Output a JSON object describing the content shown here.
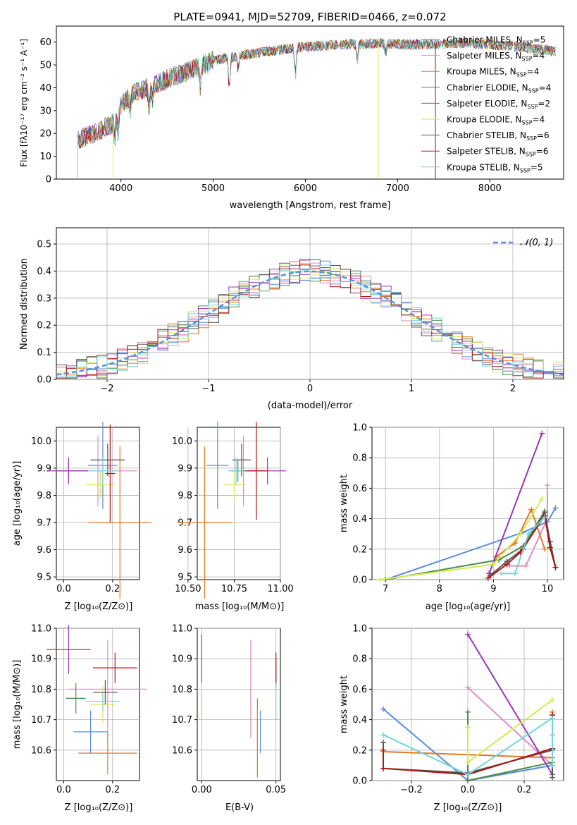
{
  "colors": {
    "chabrier_miles": "#5b8bdc",
    "salpeter_miles": "#e38bc4",
    "kroupa_miles": "#e07a22",
    "chabrier_elodie": "#4a8a4a",
    "salpeter_elodie": "#9a35b8",
    "kroupa_elodie": "#d6ea52",
    "chabrier_stelib": "#555555",
    "salpeter_stelib": "#b01515",
    "kroupa_stelib": "#72d4de",
    "normal": "#5b8fd8",
    "grid": "#b0b0b0"
  },
  "chart_data": [
    {
      "id": "spectrum",
      "type": "line",
      "title": "PLATE=0941, MJD=52709, FIBERID=0466, z=0.072",
      "xlabel": "wavelength [Angstrom, rest frame]",
      "ylabel": "Flux [fλ10⁻¹⁷ erg cm⁻² s⁻¹ A⁻¹]",
      "xlim": [
        3300,
        8800
      ],
      "ylim": [
        0,
        67
      ],
      "xticks": [
        "4000",
        "5000",
        "6000",
        "7000",
        "8000"
      ],
      "yticks": [
        "0",
        "10",
        "20",
        "30",
        "40",
        "50",
        "60"
      ],
      "grid": false,
      "legend_position": "top-right",
      "continuum_x": [
        3530,
        3700,
        3900,
        4000,
        4100,
        4400,
        4700,
        5000,
        5300,
        5600,
        5900,
        6200,
        6500,
        6800,
        7100,
        7400,
        7700,
        8000,
        8300,
        8700
      ],
      "continuum_y": [
        17,
        20,
        24,
        32,
        37,
        42,
        47,
        52,
        54,
        56,
        57.5,
        58.5,
        59,
        59.5,
        59,
        59,
        59.5,
        59,
        58,
        56
      ],
      "dips": [
        [
          3933,
          10
        ],
        [
          3968,
          9
        ],
        [
          4102,
          7
        ],
        [
          4305,
          10
        ],
        [
          4340,
          6
        ],
        [
          4861,
          9
        ],
        [
          5175,
          14
        ],
        [
          5270,
          5
        ],
        [
          5892,
          12
        ],
        [
          6563,
          7
        ],
        [
          6870,
          4
        ]
      ],
      "series": [
        {
          "name": "Chabrier MILES, N",
          "sub": "SSP",
          "tail": "=5",
          "color": "chabrier_miles"
        },
        {
          "name": "Salpeter MILES, N",
          "sub": "SSP",
          "tail": "=4",
          "color": "salpeter_miles"
        },
        {
          "name": "Kroupa MILES, N",
          "sub": "SSP",
          "tail": "=4",
          "color": "kroupa_miles"
        },
        {
          "name": "Chabrier ELODIE, N",
          "sub": "SSP",
          "tail": "=4",
          "color": "chabrier_elodie"
        },
        {
          "name": "Salpeter ELODIE, N",
          "sub": "SSP",
          "tail": "=2",
          "color": "salpeter_elodie"
        },
        {
          "name": "Kroupa ELODIE, N",
          "sub": "SSP",
          "tail": "=4",
          "color": "kroupa_elodie"
        },
        {
          "name": "Chabrier STELIB, N",
          "sub": "SSP",
          "tail": "=6",
          "color": "chabrier_stelib"
        },
        {
          "name": "Salpeter STELIB, N",
          "sub": "SSP",
          "tail": "=6",
          "color": "salpeter_stelib"
        },
        {
          "name": "Kroupa STELIB, N",
          "sub": "SSP",
          "tail": "=5",
          "color": "kroupa_stelib"
        }
      ]
    },
    {
      "id": "residuals",
      "type": "histogram",
      "xlabel": "(data-model)/error",
      "ylabel": "Normed distribution",
      "xlim": [
        -2.5,
        2.5
      ],
      "ylim": [
        0,
        0.56
      ],
      "xticks": [
        "−2",
        "−1",
        "0",
        "1",
        "2"
      ],
      "yticks": [
        "0.0",
        "0.1",
        "0.2",
        "0.3",
        "0.4",
        "0.5"
      ],
      "grid": true,
      "legend": "𝒩(0, 1)",
      "legend_position": "top-right",
      "bin_width": 0.1
    },
    {
      "id": "z-vs-age",
      "type": "errorbar",
      "xlabel": "Z [log₁₀(Z/Z⊙)]",
      "ylabel": "age  [log₁₀(age/yr)]",
      "xlim": [
        -0.03,
        0.31
      ],
      "ylim": [
        9.49,
        10.05
      ],
      "xticks": [
        "0.0",
        "0.2"
      ],
      "yticks": [
        "9.5",
        "9.6",
        "9.7",
        "9.8",
        "9.9",
        "10.0"
      ],
      "points": [
        {
          "x": 0.16,
          "xerr": 0.06,
          "y": 9.91,
          "yerr": 0.16,
          "color": "chabrier_miles"
        },
        {
          "x": 0.14,
          "xerr": 0.16,
          "y": 9.89,
          "yerr": 0.13,
          "color": "salpeter_miles"
        },
        {
          "x": 0.23,
          "xerr": 0.13,
          "y": 9.7,
          "yerr": 0.28,
          "color": "kroupa_miles"
        },
        {
          "x": 0.02,
          "xerr": 0.06,
          "y": 9.89,
          "yerr": 0.04,
          "color": "chabrier_elodie"
        },
        {
          "x": 0.02,
          "xerr": 0.08,
          "y": 9.89,
          "yerr": 0.05,
          "color": "salpeter_elodie"
        },
        {
          "x": 0.15,
          "xerr": 0.06,
          "y": 9.84,
          "yerr": 0.05,
          "color": "kroupa_elodie"
        },
        {
          "x": 0.18,
          "xerr": 0.07,
          "y": 9.93,
          "yerr": 0.06,
          "color": "chabrier_stelib"
        },
        {
          "x": 0.19,
          "xerr": 0.02,
          "y": 9.88,
          "yerr": 0.18,
          "color": "salpeter_stelib"
        },
        {
          "x": 0.16,
          "xerr": 0.05,
          "y": 9.89,
          "yerr": 0.05,
          "color": "kroupa_stelib"
        }
      ]
    },
    {
      "id": "mass-vs-age",
      "type": "errorbar",
      "xlabel": "mass [log₁₀(M/M⊙)]",
      "ylabel": "",
      "xlim": [
        10.55,
        11.0
      ],
      "ylim": [
        9.49,
        10.05
      ],
      "xticks": [
        "10.50",
        "10.75",
        "11.00"
      ],
      "yticks": [
        "9.5",
        "9.6",
        "9.7",
        "9.8",
        "9.9",
        "10.0"
      ],
      "points": [
        {
          "x": 10.66,
          "xerr": 0.06,
          "y": 9.91,
          "yerr": 0.16,
          "color": "chabrier_miles"
        },
        {
          "x": 10.8,
          "xerr": 0.08,
          "y": 9.89,
          "yerr": 0.13,
          "color": "salpeter_miles"
        },
        {
          "x": 10.59,
          "xerr": 0.15,
          "y": 9.7,
          "yerr": 0.28,
          "color": "kroupa_miles"
        },
        {
          "x": 10.77,
          "xerr": 0.04,
          "y": 9.89,
          "yerr": 0.04,
          "color": "chabrier_elodie"
        },
        {
          "x": 10.93,
          "xerr": 0.1,
          "y": 9.89,
          "yerr": 0.05,
          "color": "salpeter_elodie"
        },
        {
          "x": 10.75,
          "xerr": 0.06,
          "y": 9.84,
          "yerr": 0.05,
          "color": "kroupa_elodie"
        },
        {
          "x": 10.79,
          "xerr": 0.05,
          "y": 9.93,
          "yerr": 0.06,
          "color": "chabrier_stelib"
        },
        {
          "x": 10.87,
          "xerr": 0.06,
          "y": 9.89,
          "yerr": 0.18,
          "color": "salpeter_stelib"
        },
        {
          "x": 10.76,
          "xerr": 0.04,
          "y": 9.89,
          "yerr": 0.05,
          "color": "kroupa_stelib"
        }
      ]
    },
    {
      "id": "age-vs-weight",
      "type": "line",
      "xlabel": "age  [log₁₀(age/yr)]",
      "ylabel": "mass weight",
      "xlim": [
        6.75,
        10.3
      ],
      "ylim": [
        0,
        1.0
      ],
      "xticks": [
        "7",
        "8",
        "9",
        "10"
      ],
      "yticks": [
        "0.0",
        "0.2",
        "0.4",
        "0.6",
        "0.8",
        "1.0"
      ],
      "grid": true,
      "series": [
        {
          "color": "chabrier_miles",
          "x": [
            7.0,
            9.55,
            10.0,
            10.15
          ],
          "y": [
            0.0,
            0.31,
            0.38,
            0.47
          ]
        },
        {
          "color": "salpeter_miles",
          "x": [
            9.3,
            9.6,
            10.0,
            10.0
          ],
          "y": [
            0.09,
            0.09,
            0.4,
            0.62
          ]
        },
        {
          "color": "kroupa_miles",
          "x": [
            9.05,
            9.4,
            9.7,
            9.95
          ],
          "y": [
            0.15,
            0.24,
            0.46,
            0.2
          ]
        },
        {
          "color": "chabrier_elodie",
          "x": [
            7.0,
            9.1,
            9.55,
            9.95
          ],
          "y": [
            0.0,
            0.13,
            0.22,
            0.45
          ]
        },
        {
          "color": "salpeter_elodie",
          "x": [
            8.92,
            9.9
          ],
          "y": [
            0.04,
            0.96
          ]
        },
        {
          "color": "kroupa_elodie",
          "x": [
            6.9,
            9.0,
            9.5,
            9.9
          ],
          "y": [
            0.0,
            0.1,
            0.3,
            0.53
          ]
        },
        {
          "color": "chabrier_stelib",
          "x": [
            8.95,
            9.25,
            9.55,
            9.95,
            10.05,
            10.15
          ],
          "y": [
            0.03,
            0.12,
            0.2,
            0.44,
            0.25,
            0.08
          ]
        },
        {
          "color": "salpeter_stelib",
          "x": [
            8.9,
            9.25,
            9.5,
            9.95,
            10.05,
            10.15
          ],
          "y": [
            0.01,
            0.1,
            0.18,
            0.42,
            0.21,
            0.08
          ]
        },
        {
          "color": "kroupa_stelib",
          "x": [
            9.15,
            9.4,
            9.65,
            9.95
          ],
          "y": [
            0.04,
            0.04,
            0.3,
            0.41
          ]
        }
      ]
    },
    {
      "id": "z-vs-mass",
      "type": "errorbar",
      "xlabel": "Z [log₁₀(Z/Z⊙)]",
      "ylabel": "mass [log₁₀(M/M⊙)]",
      "xlim": [
        -0.03,
        0.31
      ],
      "ylim": [
        10.5,
        11.0
      ],
      "xticks": [
        "0.0",
        "0.2"
      ],
      "yticks": [
        "10.6",
        "10.7",
        "10.8",
        "10.9",
        "11.0"
      ],
      "points": [
        {
          "x": 0.11,
          "xerr": 0.07,
          "y": 10.66,
          "yerr": 0.07,
          "color": "chabrier_miles"
        },
        {
          "x": 0.18,
          "xerr": 0.16,
          "y": 10.8,
          "yerr": 0.16,
          "color": "salpeter_miles"
        },
        {
          "x": 0.18,
          "xerr": 0.12,
          "y": 10.59,
          "yerr": 0.07,
          "color": "kroupa_miles"
        },
        {
          "x": 0.05,
          "xerr": 0.04,
          "y": 10.77,
          "yerr": 0.05,
          "color": "chabrier_elodie"
        },
        {
          "x": 0.02,
          "xerr": 0.09,
          "y": 10.93,
          "yerr": 0.08,
          "color": "salpeter_elodie"
        },
        {
          "x": 0.16,
          "xerr": 0.05,
          "y": 10.75,
          "yerr": 0.06,
          "color": "kroupa_elodie"
        },
        {
          "x": 0.17,
          "xerr": 0.05,
          "y": 10.79,
          "yerr": 0.04,
          "color": "chabrier_stelib"
        },
        {
          "x": 0.21,
          "xerr": 0.09,
          "y": 10.87,
          "yerr": 0.05,
          "color": "salpeter_stelib"
        },
        {
          "x": 0.16,
          "xerr": 0.07,
          "y": 10.76,
          "yerr": 0.03,
          "color": "kroupa_stelib"
        }
      ]
    },
    {
      "id": "ebv-vs-mass",
      "type": "errorbar",
      "xlabel": "E(B-V)",
      "ylabel": "",
      "xlim": [
        -0.003,
        0.053
      ],
      "ylim": [
        10.5,
        11.0
      ],
      "xticks": [
        "0.00",
        "0.05"
      ],
      "yticks": [
        "10.6",
        "10.7",
        "10.8",
        "10.9",
        "11.0"
      ],
      "points": [
        {
          "x": 0.0395,
          "xerr": 0,
          "y": 10.66,
          "yerr": 0.07,
          "color": "chabrier_miles"
        },
        {
          "x": 0.033,
          "xerr": 0,
          "y": 10.8,
          "yerr": 0.16,
          "color": "salpeter_miles"
        },
        {
          "x": 0.0375,
          "xerr": 0,
          "y": 10.64,
          "yerr": 0.13,
          "color": "kroupa_miles"
        },
        {
          "x": 0.0,
          "xerr": 0,
          "y": 10.74,
          "yerr": 0.05,
          "color": "chabrier_elodie"
        },
        {
          "x": 0.0,
          "xerr": 0,
          "y": 10.9,
          "yerr": 0.08,
          "color": "salpeter_elodie"
        },
        {
          "x": 0.0,
          "xerr": 0,
          "y": 10.74,
          "yerr": 0.05,
          "color": "kroupa_elodie"
        },
        {
          "x": 0.05,
          "xerr": 0,
          "y": 10.85,
          "yerr": 0.05,
          "color": "chabrier_stelib"
        },
        {
          "x": 0.05,
          "xerr": 0,
          "y": 10.87,
          "yerr": 0.05,
          "color": "salpeter_stelib"
        },
        {
          "x": 0.05,
          "xerr": 0,
          "y": 10.76,
          "yerr": 0.06,
          "color": "kroupa_stelib"
        }
      ]
    },
    {
      "id": "z-vs-weight",
      "type": "line",
      "xlabel": "Z [log₁₀(Z/Z⊙)]",
      "ylabel": "mass weight",
      "xlim": [
        -0.34,
        0.34
      ],
      "ylim": [
        0,
        1.0
      ],
      "xticks": [
        "−0.2",
        "0.0",
        "0.2"
      ],
      "yticks": [
        "0.0",
        "0.2",
        "0.4",
        "0.6",
        "0.8",
        "1.0"
      ],
      "grid": true,
      "series": [
        {
          "color": "chabrier_miles",
          "x": [
            -0.3,
            0.0,
            0.3,
            0.3
          ],
          "y": [
            0.47,
            0.0,
            0.1,
            0.3
          ]
        },
        {
          "color": "salpeter_miles",
          "x": [
            0.0,
            0.3,
            0.3
          ],
          "y": [
            0.61,
            0.1,
            0.3
          ]
        },
        {
          "color": "kroupa_miles",
          "x": [
            -0.3,
            0.3,
            0.3
          ],
          "y": [
            0.19,
            0.15,
            0.45
          ]
        },
        {
          "color": "chabrier_elodie",
          "x": [
            0.0,
            0.0,
            0.3,
            0.3
          ],
          "y": [
            0.45,
            0.0,
            0.12,
            0.43
          ]
        },
        {
          "color": "salpeter_elodie",
          "x": [
            0.0,
            0.3
          ],
          "y": [
            0.96,
            0.04
          ]
        },
        {
          "color": "kroupa_elodie",
          "x": [
            0.0,
            0.0,
            0.3
          ],
          "y": [
            0.35,
            0.12,
            0.53
          ]
        },
        {
          "color": "chabrier_stelib",
          "x": [
            -0.3,
            -0.3,
            0.0,
            0.3,
            0.3
          ],
          "y": [
            0.25,
            0.08,
            0.05,
            0.2,
            0.02
          ]
        },
        {
          "color": "salpeter_stelib",
          "x": [
            -0.3,
            -0.3,
            0.0,
            0.3,
            0.3
          ],
          "y": [
            0.2,
            0.08,
            0.04,
            0.21,
            0.43
          ]
        },
        {
          "color": "kroupa_stelib",
          "x": [
            -0.3,
            0.0,
            0.3,
            0.3
          ],
          "y": [
            0.3,
            0.04,
            0.41,
            0.1
          ]
        }
      ]
    }
  ]
}
